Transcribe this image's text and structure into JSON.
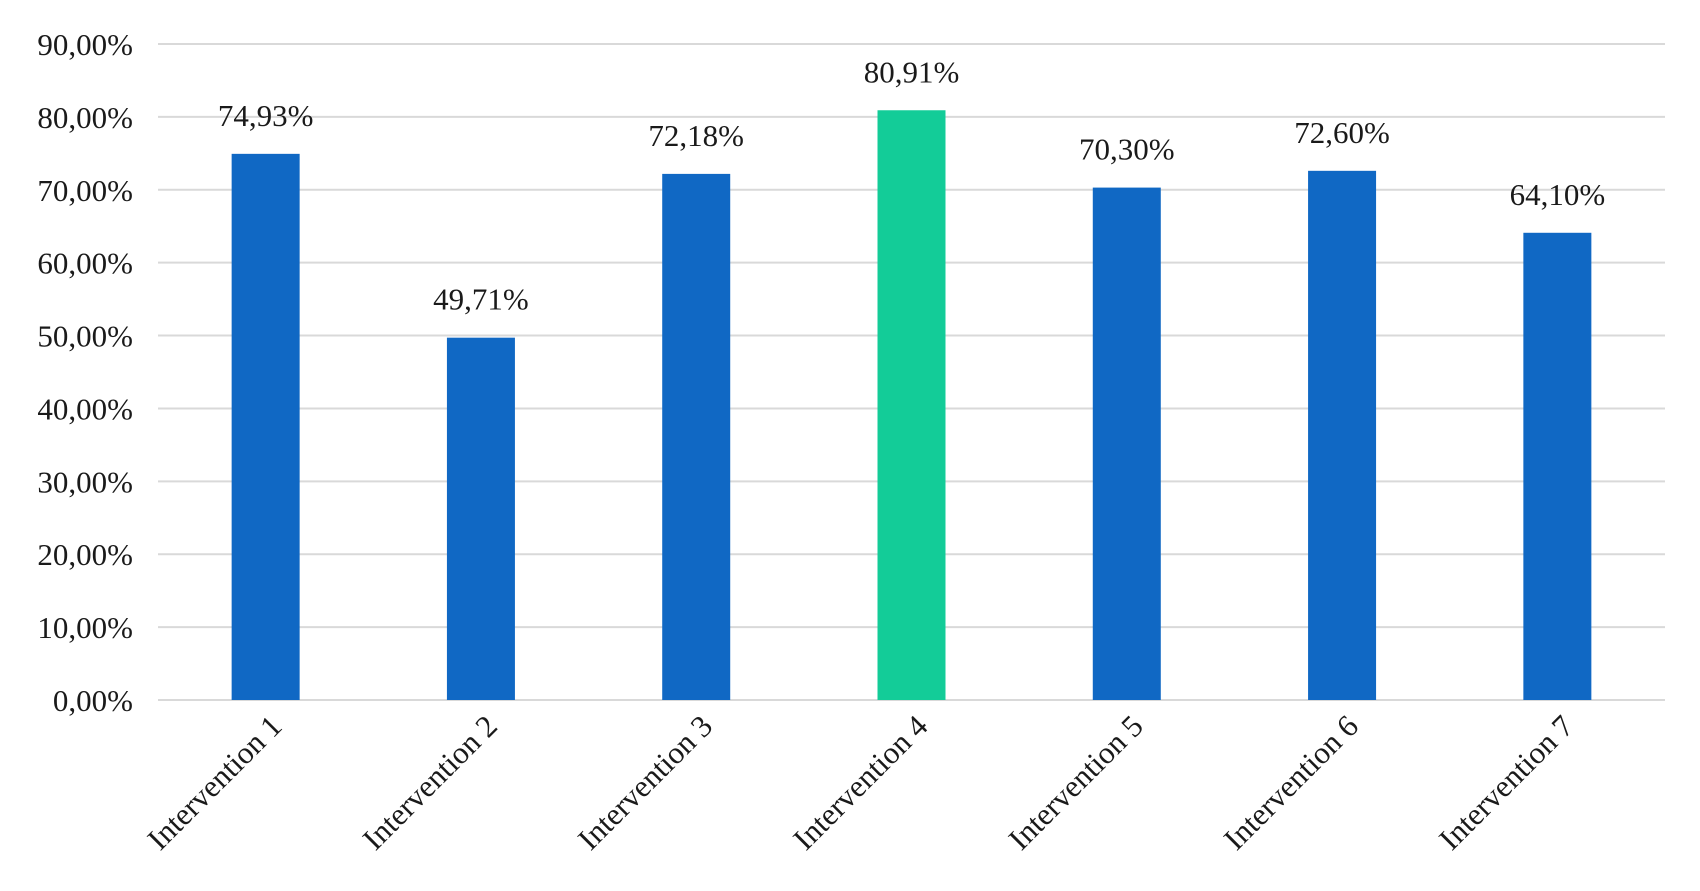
{
  "chart_data": {
    "type": "bar",
    "categories": [
      "Intervention 1",
      "Intervention 2",
      "Intervention 3",
      "Intervention 4",
      "Intervention 5",
      "Intervention 6",
      "Intervention 7"
    ],
    "values": [
      74.93,
      49.71,
      72.18,
      80.91,
      70.3,
      72.6,
      64.1
    ],
    "data_labels": [
      "74,93%",
      "49,71%",
      "72,18%",
      "80,91%",
      "70,30%",
      "72,60%",
      "64,10%"
    ],
    "ylim": [
      0,
      90
    ],
    "yticks": [
      0,
      10,
      20,
      30,
      40,
      50,
      60,
      70,
      80,
      90
    ],
    "ytick_labels": [
      "0,00%",
      "10,00%",
      "20,00%",
      "30,00%",
      "40,00%",
      "50,00%",
      "60,00%",
      "70,00%",
      "80,00%",
      "90,00%"
    ],
    "bar_colors": [
      "#1068c4",
      "#1068c4",
      "#1068c4",
      "#13cc98",
      "#1068c4",
      "#1068c4",
      "#1068c4"
    ],
    "grid": true,
    "legend": "none",
    "title": "",
    "xlabel": "",
    "ylabel": ""
  }
}
